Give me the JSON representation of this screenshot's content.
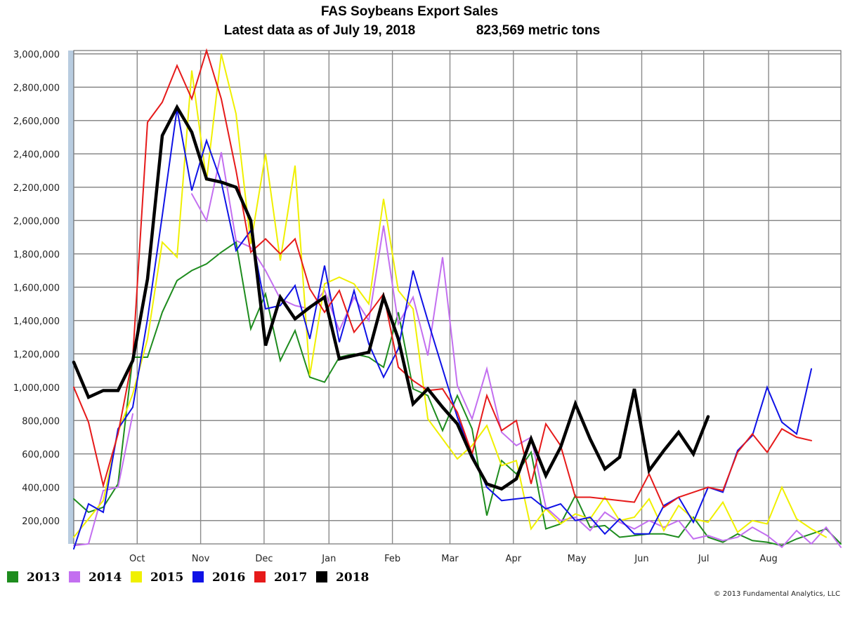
{
  "title_line1": "FAS Soybeans Export Sales",
  "title_line2_left": "Latest data as of July 19, 2018",
  "title_line2_right": "823,569 metric tons",
  "credit": "© 2013 Fundamental Analytics, LLC",
  "chart_data": {
    "type": "line",
    "title": "FAS Soybeans Export Sales",
    "subtitle": "Latest data as of July 19, 2018  823,569 metric tons",
    "xlabel": "",
    "ylabel": "",
    "ylim": [
      60000,
      3020000
    ],
    "yticks": [
      200000,
      400000,
      600000,
      800000,
      1000000,
      1200000,
      1400000,
      1600000,
      1800000,
      2000000,
      2200000,
      2400000,
      2600000,
      2800000,
      3000000
    ],
    "ytick_labels": [
      "200,000",
      "400,000",
      "600,000",
      "800,000",
      "1,000,000",
      "1,200,000",
      "1,400,000",
      "1,600,000",
      "1,800,000",
      "2,000,000",
      "2,200,000",
      "2,400,000",
      "2,600,000",
      "2,800,000",
      "3,000,000"
    ],
    "x_unit": "marketing-year week (week 1 = first week of September)",
    "xlim": [
      1,
      53
    ],
    "xticks": [
      {
        "x": 5.3,
        "label": "Oct"
      },
      {
        "x": 9.6,
        "label": "Nov"
      },
      {
        "x": 13.9,
        "label": "Dec"
      },
      {
        "x": 18.3,
        "label": "Jan"
      },
      {
        "x": 22.6,
        "label": "Feb"
      },
      {
        "x": 26.5,
        "label": "Mar"
      },
      {
        "x": 30.8,
        "label": "Apr"
      },
      {
        "x": 35.1,
        "label": "May"
      },
      {
        "x": 39.5,
        "label": "Jun"
      },
      {
        "x": 43.7,
        "label": "Jul"
      },
      {
        "x": 48.1,
        "label": "Aug"
      }
    ],
    "grid": true,
    "legend_position": "bottom-left",
    "series": [
      {
        "name": "2013",
        "color": "#1e8c1e",
        "width": 2,
        "x": [
          1,
          2,
          3,
          4,
          5,
          6,
          7,
          8,
          9,
          10,
          11,
          12,
          13,
          14,
          15,
          16,
          17,
          18,
          19,
          20,
          21,
          22,
          23,
          24,
          25,
          26,
          27,
          28,
          29,
          30,
          31,
          32,
          33,
          34,
          35,
          36,
          37,
          38,
          39,
          40,
          41,
          42,
          43,
          44,
          45,
          46,
          47,
          48,
          49,
          50,
          51,
          52,
          53
        ],
        "values": [
          330000,
          250000,
          280000,
          420000,
          1180000,
          1180000,
          1450000,
          1640000,
          1700000,
          1740000,
          1810000,
          1870000,
          1350000,
          1560000,
          1160000,
          1340000,
          1060000,
          1030000,
          1180000,
          1200000,
          1180000,
          1120000,
          1450000,
          990000,
          950000,
          740000,
          950000,
          750000,
          230000,
          560000,
          480000,
          610000,
          150000,
          180000,
          350000,
          160000,
          170000,
          100000,
          110000,
          120000,
          120000,
          100000,
          220000,
          100000,
          70000,
          120000,
          80000,
          70000,
          50000,
          90000,
          120000,
          150000,
          60000
        ]
      },
      {
        "name": "2014",
        "color": "#c36ff0",
        "width": 2,
        "x": [
          1,
          2,
          3,
          4,
          5,
          6,
          7,
          8,
          9,
          10,
          11,
          12,
          13,
          14,
          15,
          16,
          17,
          18,
          19,
          20,
          21,
          22,
          23,
          24,
          25,
          26,
          27,
          28,
          29,
          30,
          31,
          32,
          33,
          34,
          35,
          36,
          37,
          38,
          39,
          40,
          41,
          42,
          43,
          44,
          45,
          46,
          47,
          48,
          49,
          50,
          51,
          52,
          53
        ],
        "values": [
          50000,
          60000,
          380000,
          400000,
          840000,
          null,
          null,
          null,
          2160000,
          2000000,
          2410000,
          1880000,
          1840000,
          1700000,
          1530000,
          1490000,
          1470000,
          1580000,
          1340000,
          1540000,
          1400000,
          1970000,
          1380000,
          1540000,
          1190000,
          1780000,
          1010000,
          810000,
          1110000,
          730000,
          650000,
          700000,
          280000,
          200000,
          220000,
          140000,
          250000,
          190000,
          150000,
          200000,
          160000,
          200000,
          90000,
          110000,
          80000,
          100000,
          160000,
          110000,
          40000,
          140000,
          60000,
          160000,
          40000
        ],
        "segment_breaks": [
          5
        ]
      },
      {
        "name": "2015",
        "color": "#f0f000",
        "width": 2,
        "x": [
          1,
          2,
          3,
          4,
          5,
          6,
          7,
          8,
          9,
          10,
          11,
          12,
          13,
          14,
          15,
          16,
          17,
          18,
          19,
          20,
          21,
          22,
          23,
          24,
          25,
          26,
          27,
          28,
          29,
          30,
          31,
          32,
          33,
          34,
          35,
          36,
          37,
          38,
          39,
          40,
          41,
          42,
          43,
          44,
          45,
          46,
          47,
          48,
          49,
          50,
          51,
          52,
          53
        ],
        "values": [
          100000,
          210000,
          320000,
          730000,
          960000,
          1290000,
          1870000,
          1780000,
          2900000,
          2240000,
          3000000,
          2640000,
          1860000,
          2400000,
          1760000,
          2330000,
          1070000,
          1620000,
          1660000,
          1620000,
          1500000,
          2130000,
          1580000,
          1470000,
          810000,
          690000,
          570000,
          650000,
          770000,
          530000,
          560000,
          150000,
          270000,
          180000,
          240000,
          210000,
          340000,
          200000,
          220000,
          330000,
          140000,
          290000,
          210000,
          190000,
          310000,
          130000,
          200000,
          180000,
          400000,
          210000,
          150000,
          100000,
          null
        ]
      },
      {
        "name": "2016",
        "color": "#0f12e6",
        "width": 2,
        "x": [
          1,
          2,
          3,
          4,
          5,
          6,
          7,
          8,
          9,
          10,
          11,
          12,
          13,
          14,
          15,
          16,
          17,
          18,
          19,
          20,
          21,
          22,
          23,
          24,
          25,
          26,
          27,
          28,
          29,
          30,
          31,
          32,
          33,
          34,
          35,
          36,
          37,
          38,
          39,
          40,
          41,
          42,
          43,
          44,
          45,
          46,
          47,
          48,
          49,
          50,
          51,
          52,
          53
        ],
        "values": [
          30000,
          300000,
          250000,
          750000,
          880000,
          1410000,
          2030000,
          2670000,
          2180000,
          2480000,
          2230000,
          1820000,
          1940000,
          1470000,
          1490000,
          1610000,
          1290000,
          1730000,
          1270000,
          1580000,
          1260000,
          1060000,
          1230000,
          1700000,
          1400000,
          1110000,
          820000,
          600000,
          400000,
          320000,
          330000,
          340000,
          270000,
          300000,
          200000,
          220000,
          120000,
          210000,
          120000,
          120000,
          290000,
          340000,
          190000,
          400000,
          370000,
          620000,
          710000,
          1000000,
          790000,
          720000,
          1110000,
          null,
          null
        ]
      },
      {
        "name": "2017",
        "color": "#e61a1a",
        "width": 2,
        "x": [
          1,
          2,
          3,
          4,
          5,
          6,
          7,
          8,
          9,
          10,
          11,
          12,
          13,
          14,
          15,
          16,
          17,
          18,
          19,
          20,
          21,
          22,
          23,
          24,
          25,
          26,
          27,
          28,
          29,
          30,
          31,
          32,
          33,
          34,
          35,
          36,
          37,
          38,
          39,
          40,
          41,
          42,
          43,
          44,
          45,
          46,
          47,
          48,
          49,
          50,
          51,
          52,
          53
        ],
        "values": [
          1000000,
          790000,
          410000,
          720000,
          1180000,
          2590000,
          2710000,
          2930000,
          2730000,
          3020000,
          2730000,
          2300000,
          1810000,
          1890000,
          1800000,
          1890000,
          1590000,
          1450000,
          1580000,
          1330000,
          1440000,
          1560000,
          1120000,
          1040000,
          980000,
          990000,
          850000,
          600000,
          950000,
          740000,
          800000,
          420000,
          780000,
          650000,
          340000,
          340000,
          330000,
          320000,
          310000,
          480000,
          280000,
          340000,
          370000,
          400000,
          380000,
          610000,
          720000,
          610000,
          750000,
          700000,
          680000,
          null,
          null
        ]
      },
      {
        "name": "2018",
        "color": "#000000",
        "width": 4.5,
        "x": [
          1,
          2,
          3,
          4,
          5,
          6,
          7,
          8,
          9,
          10,
          11,
          12,
          13,
          14,
          15,
          16,
          17,
          18,
          19,
          20,
          21,
          22,
          23,
          24,
          25,
          26,
          27,
          28,
          29,
          30,
          31,
          32,
          33,
          34,
          35,
          36,
          37,
          38,
          39,
          40,
          41,
          42,
          43,
          44,
          45,
          46,
          47,
          48,
          49,
          50,
          51,
          52,
          53
        ],
        "values": [
          1150000,
          940000,
          980000,
          980000,
          1160000,
          1650000,
          2510000,
          2680000,
          2530000,
          2250000,
          2230000,
          2200000,
          2000000,
          1250000,
          1540000,
          1410000,
          1480000,
          1540000,
          1170000,
          1190000,
          1210000,
          1540000,
          1290000,
          900000,
          990000,
          880000,
          780000,
          580000,
          420000,
          390000,
          450000,
          690000,
          470000,
          640000,
          900000,
          690000,
          510000,
          580000,
          990000,
          500000,
          620000,
          730000,
          600000,
          823569,
          null,
          null,
          null,
          null,
          null,
          null,
          null,
          null,
          null
        ]
      }
    ]
  }
}
